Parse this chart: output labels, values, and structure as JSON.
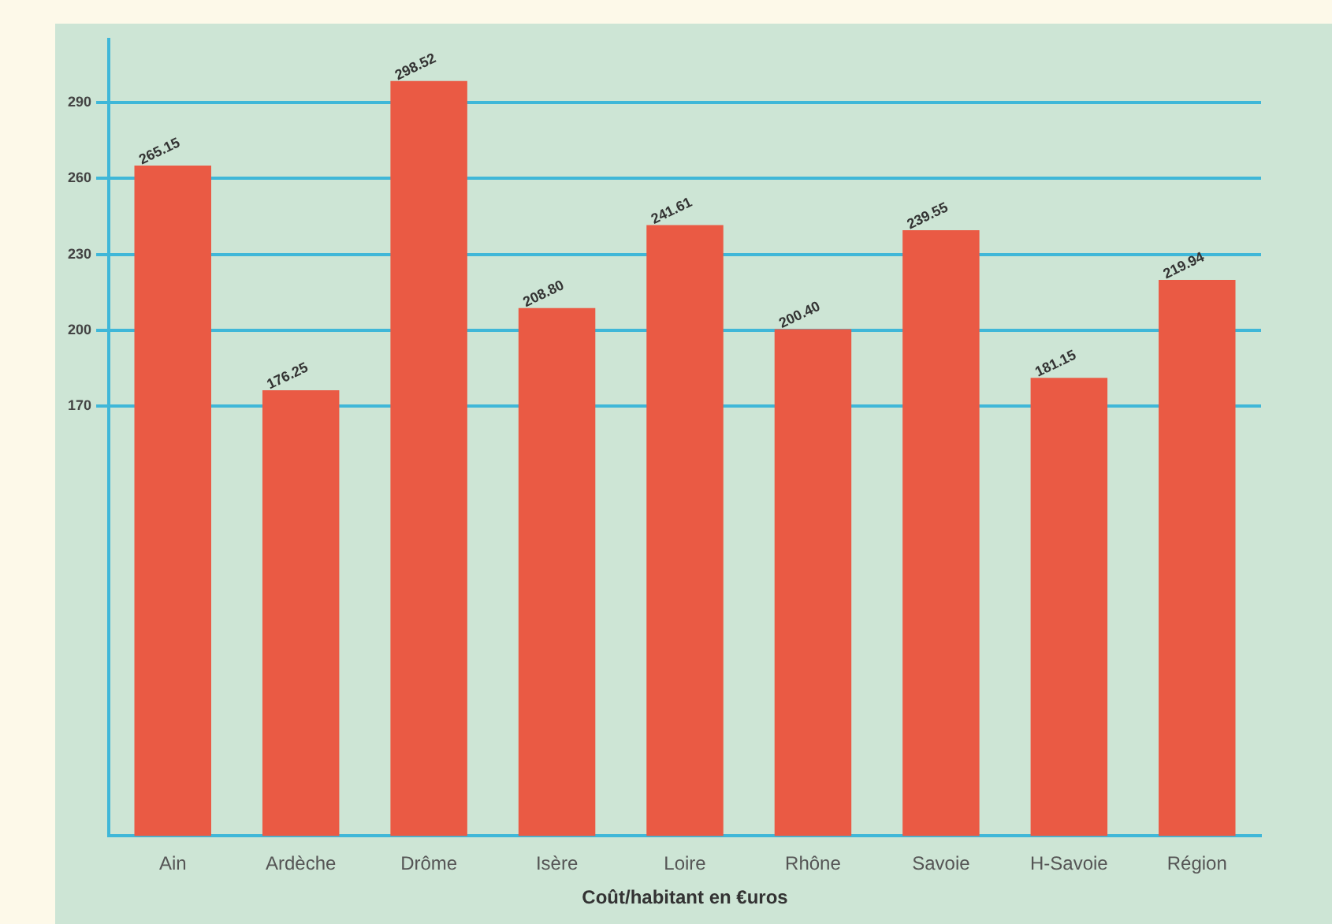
{
  "chart_data": {
    "type": "bar",
    "xlabel": "Coût/habitant en €uros",
    "categories": [
      "Ain",
      "Ardèche",
      "Drôme",
      "Isère",
      "Loire",
      "Rhône",
      "Savoie",
      "H-Savoie",
      "Région"
    ],
    "values": [
      265.15,
      176.25,
      298.52,
      208.8,
      241.61,
      200.4,
      239.55,
      181.15,
      219.94
    ],
    "value_labels": [
      "265.15",
      "176.25",
      "298.52",
      "208.80",
      "241.61",
      "200.40",
      "239.55",
      "181.15",
      "219.94"
    ],
    "color": "#ea5a44",
    "ylim": [
      0,
      315
    ],
    "yticks": [
      170,
      200,
      230,
      260,
      290
    ],
    "grid": "y"
  }
}
